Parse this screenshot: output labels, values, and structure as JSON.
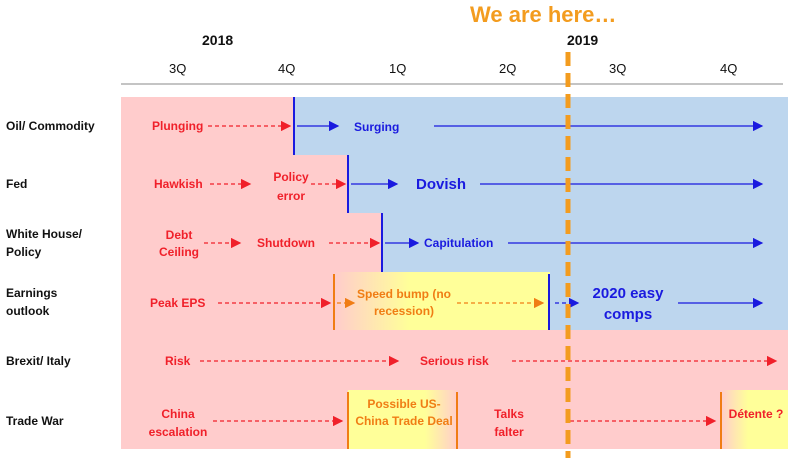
{
  "banner": "We are here…",
  "years": {
    "y2018": "2018",
    "y2019": "2019"
  },
  "quarters": [
    "3Q",
    "4Q",
    "1Q",
    "2Q",
    "3Q",
    "4Q"
  ],
  "rows": {
    "oil": {
      "label": "Oil/ Commodity",
      "before": "Plunging",
      "after": "Surging"
    },
    "fed": {
      "label": "Fed",
      "before1": "Hawkish",
      "before2": "Policy error",
      "after": "Dovish"
    },
    "wh": {
      "label": "White House/ Policy",
      "before1": "Debt Ceiling",
      "before2": "Shutdown",
      "after": "Capitulation"
    },
    "eps": {
      "label": "Earnings outlook",
      "before1": "Peak EPS",
      "before2": "Speed bump (no recession)",
      "after": "2020 easy comps"
    },
    "brexit": {
      "label": "Brexit/ Italy",
      "before1": "Risk",
      "before2": "Serious risk"
    },
    "trade": {
      "label": "Trade War",
      "s1": "China escalation",
      "s2": "Possible US-China Trade Deal",
      "s3": "Talks falter",
      "s4": "Détente ?"
    }
  },
  "colors": {
    "red": "#f0202a",
    "blue": "#1a1adf",
    "orange": "#f07d14",
    "pink": "#ffc6c6",
    "lightblue": "#bdd6ee",
    "yellow": "#ffff99",
    "dashedLine": "#f39c1f"
  }
}
